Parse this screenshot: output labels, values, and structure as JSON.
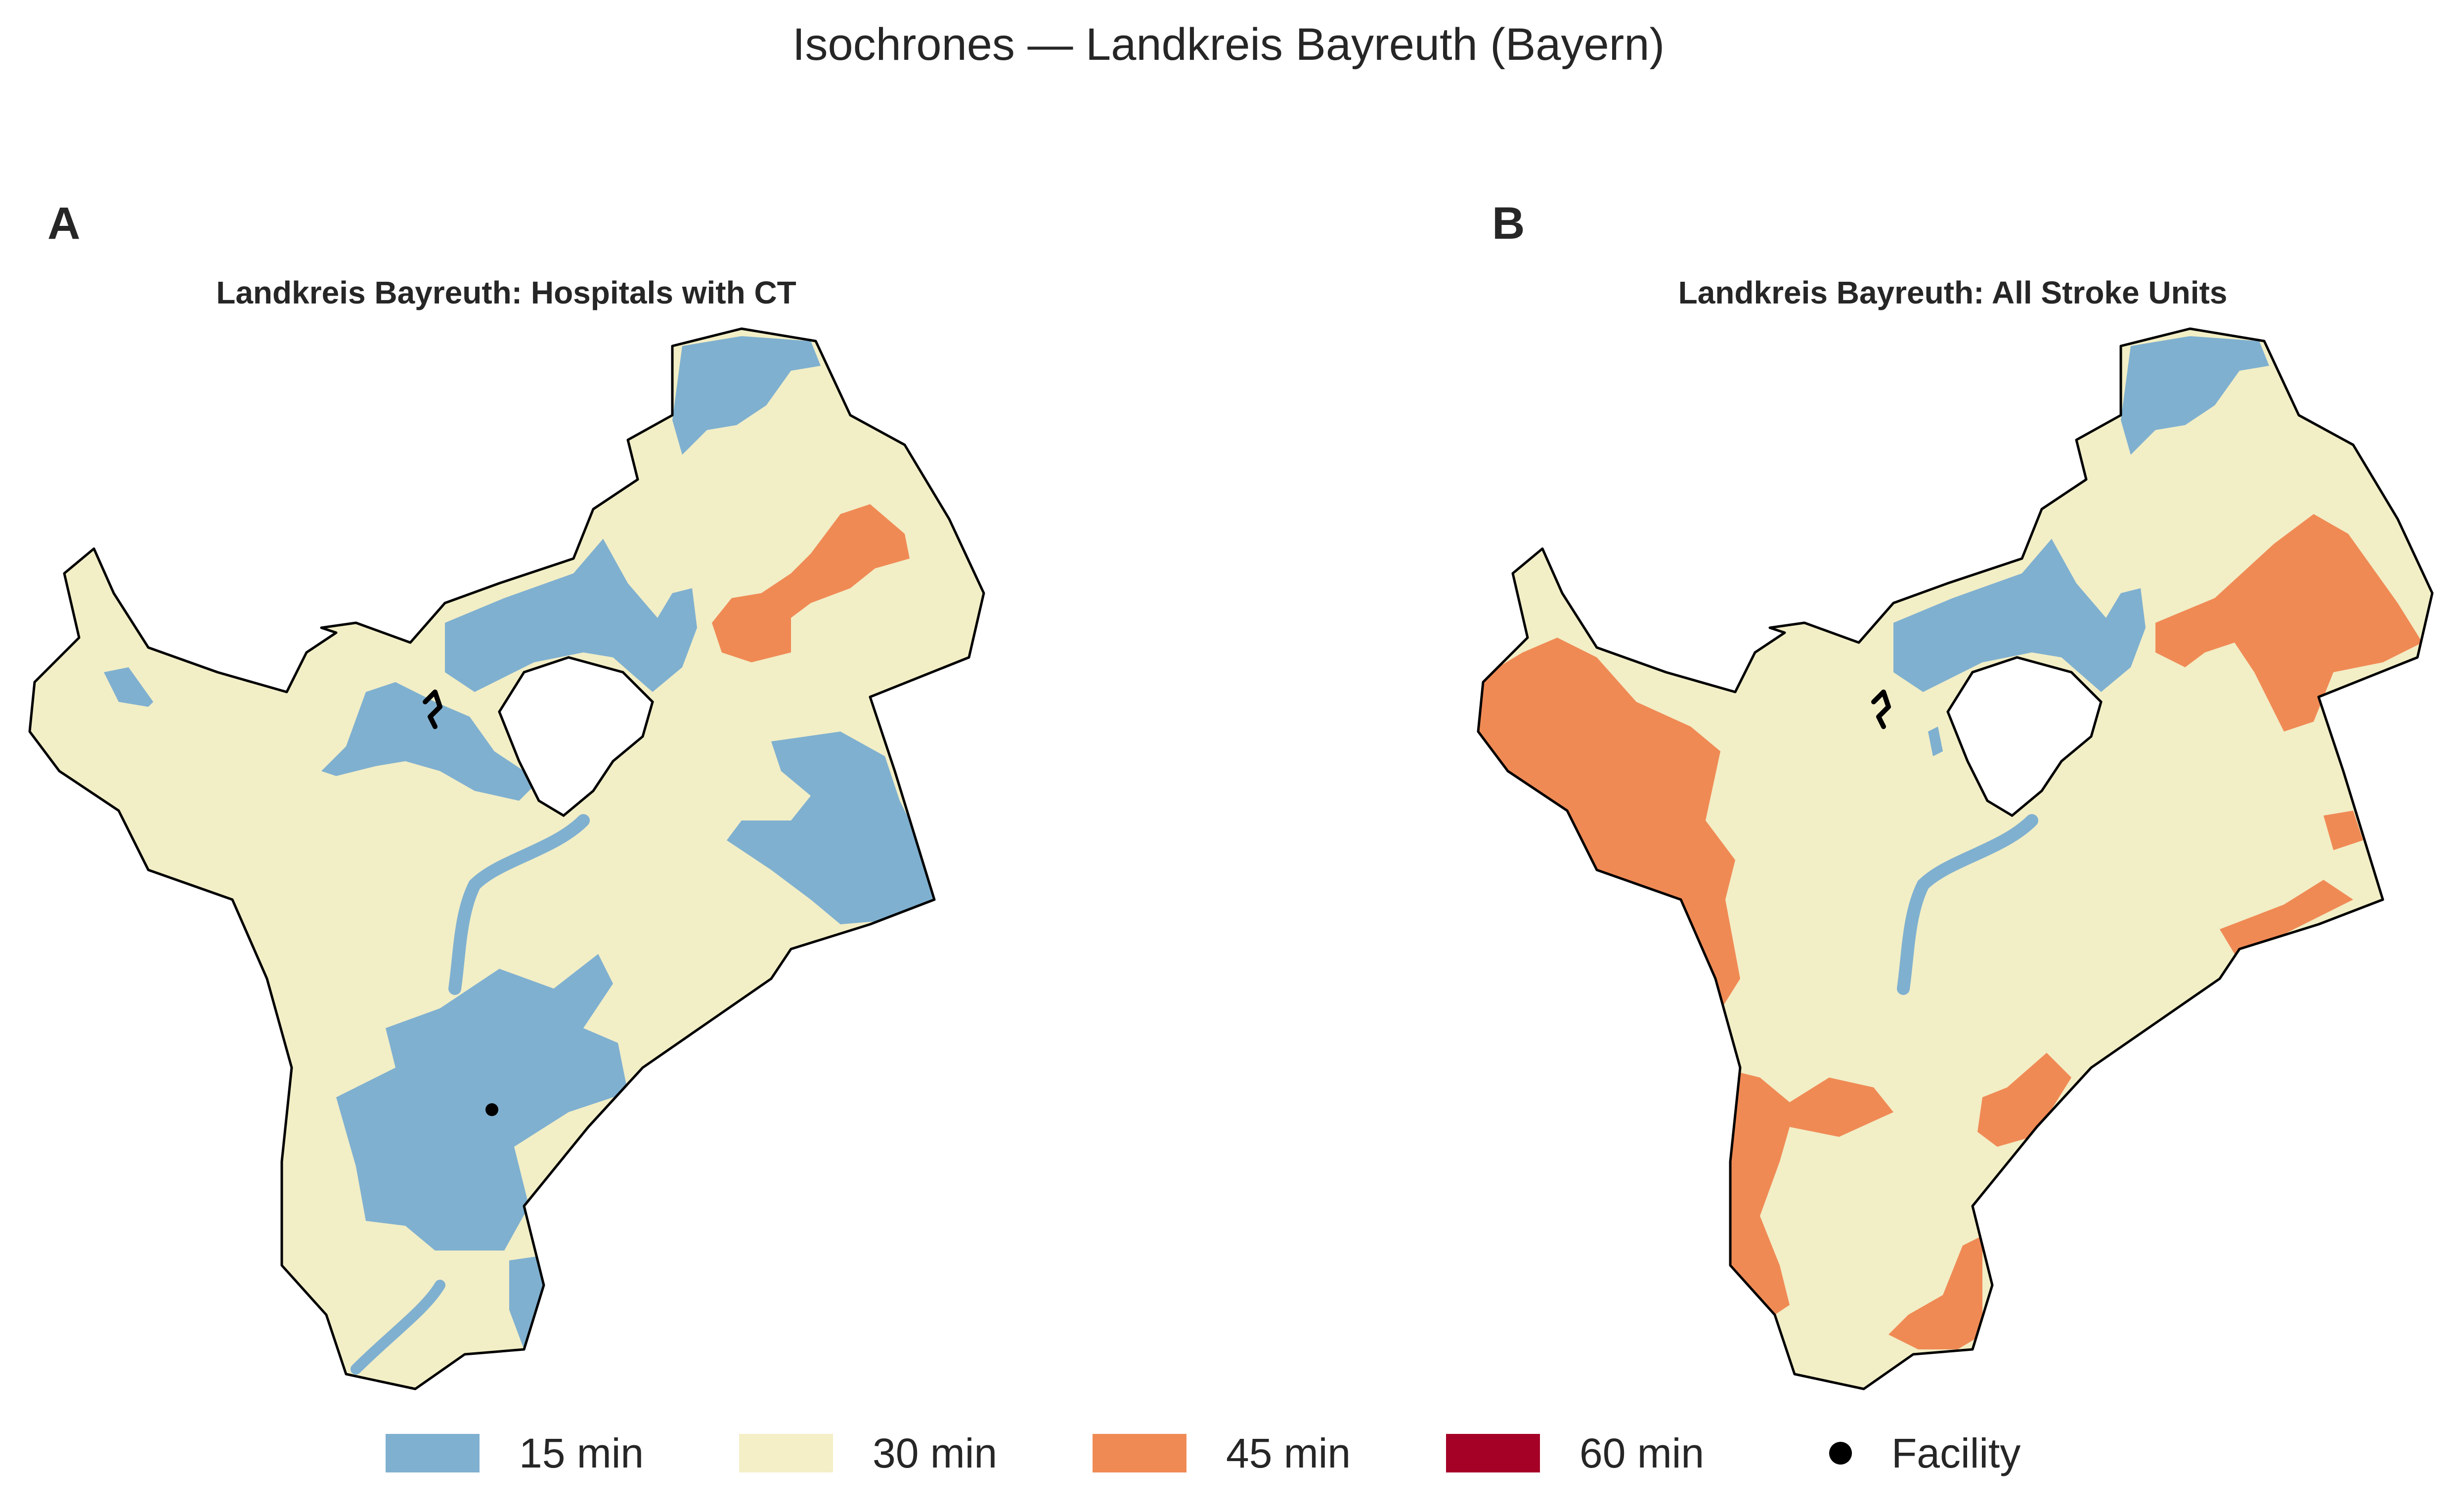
{
  "title": "Isochrones — Landkreis Bayreuth (Bayern)",
  "panels": [
    {
      "letter": "A",
      "title": "Landkreis Bayreuth: Hospitals with CT",
      "facility_count_visible": 1
    },
    {
      "letter": "B",
      "title": "Landkreis Bayreuth: All Stroke Units",
      "facility_count_visible": 0
    }
  ],
  "legend": [
    {
      "label": "15 min",
      "color": "#7fb0d0"
    },
    {
      "label": "30 min",
      "color": "#f4efc6"
    },
    {
      "label": "45 min",
      "color": "#f08a55"
    },
    {
      "label": "60 min",
      "color": "#a50026"
    },
    {
      "label": "Facility",
      "color": "#000000",
      "marker": "dot"
    }
  ],
  "colors": {
    "c15": "#7fb0d0",
    "c30": "#f2eec6",
    "c45": "#f08a55",
    "c60": "#a50026",
    "boundary": "#000000",
    "hole": "#ffffff"
  }
}
